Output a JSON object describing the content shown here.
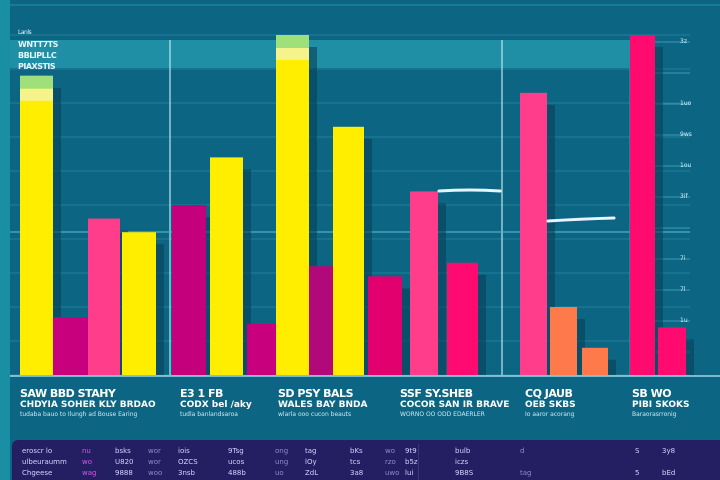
{
  "chart_data": {
    "type": "bar",
    "title": "",
    "xlabel": "",
    "ylabel": "",
    "ylim": [
      0,
      100
    ],
    "grid": true,
    "legend": "none",
    "groups": [
      {
        "label": [
          "SAW  BBD  STAHY",
          "CHDYIA  SOHER  KLY  BRDAO",
          "tudaba bauo to Ilungh ad Bouse Earing"
        ],
        "sub": [
          "E3 1  FB",
          "CODX  bel /aky",
          "tudla banlandsaroa"
        ]
      },
      {
        "label": [
          "SD  PSY  BALS",
          "WALES  BAY  BNDA",
          "wlarla ooo cucon beauts"
        ]
      },
      {
        "label": [
          "SSF  SY.SHEB",
          "COCOR  SAN  IR  BRAVE",
          "WORNO OO ODD EDAERLER"
        ]
      },
      {
        "label": [
          "CQ  JAUB",
          "OEB  SKBS",
          "Io aaror acorang"
        ]
      },
      {
        "label": [
          "SB  WO",
          "PIBI  SKOKS",
          "Baraorasrronig"
        ]
      }
    ],
    "bars": [
      {
        "group": 0,
        "color": "#ffee00",
        "value": 88,
        "cap": true
      },
      {
        "group": 0,
        "color": "#c8007e",
        "value": 17
      },
      {
        "group": 0,
        "color": "#ff3d8b",
        "value": 46
      },
      {
        "group": 0,
        "color": "#ffee00",
        "value": 42
      },
      {
        "group": 1,
        "color": "#c4007c",
        "value": 50
      },
      {
        "group": 1,
        "color": "#ffee00",
        "value": 64
      },
      {
        "group": 1,
        "color": "#c8007e",
        "value": 15
      },
      {
        "group": 1,
        "color": "#ffee00",
        "value": 100,
        "cap": true
      },
      {
        "group": 1,
        "color": "#b00a7a",
        "value": 32
      },
      {
        "group": 1,
        "color": "#ffee00",
        "value": 73
      },
      {
        "group": 2,
        "color": "#e2006f",
        "value": 29
      },
      {
        "group": 2,
        "color": "#ff3d8b",
        "value": 54
      },
      {
        "group": 2,
        "color": "#ff0a70",
        "value": 33
      },
      {
        "group": 3,
        "color": "#ff3d8b",
        "value": 83
      },
      {
        "group": 3,
        "color": "#ff7a4a",
        "value": 20
      },
      {
        "group": 3,
        "color": "#ff7a4a",
        "value": 8
      },
      {
        "group": 4,
        "color": "#ff0a6e",
        "value": 100
      },
      {
        "group": 4,
        "color": "#ff0a6e",
        "value": 14
      }
    ],
    "right_ticks": [
      "3z",
      "",
      "1uo",
      "9ws",
      "1ou",
      "3if",
      "",
      "7i",
      "7l",
      "1u",
      ""
    ],
    "left_legend": [
      "Lanls",
      "WNTT7TS",
      "BBLIPLLC",
      "PIAXSTIS"
    ]
  },
  "table": {
    "rows": [
      [
        "eroscr lo",
        "nu",
        "bsks",
        "wor",
        "iois",
        "9Tsg",
        "ong",
        "tag",
        "bKs",
        "wo",
        "9t9",
        "bulb",
        "d",
        "S",
        "3y8"
      ],
      [
        "ulbeuraumm",
        "wo",
        "U820",
        "wor",
        "OZCS",
        "ucos",
        "ung",
        "lOy",
        "tcs",
        "rzo",
        "b5z",
        "iczs",
        "",
        "",
        ""
      ],
      [
        "Chgeese",
        "wag",
        "9888",
        "woo",
        "3nsb",
        "488b",
        "uo",
        "ZdL",
        "3a8",
        "uwo",
        "lui",
        "9B8S",
        "tag",
        "5",
        "bEd"
      ]
    ]
  }
}
